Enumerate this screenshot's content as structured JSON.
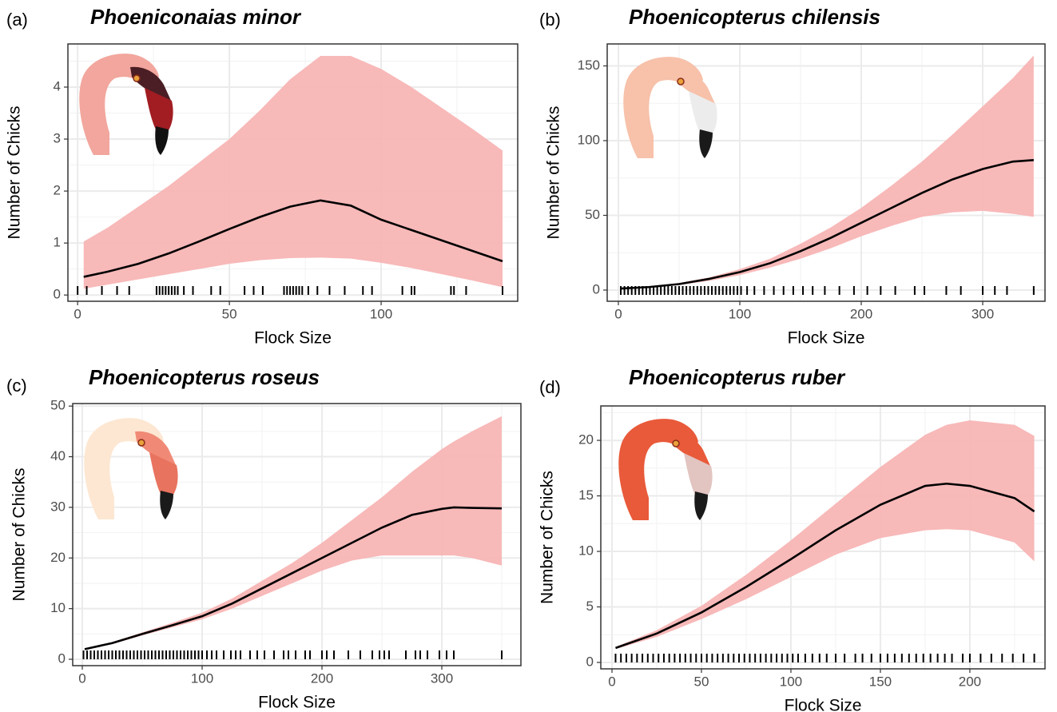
{
  "chart_data": [
    {
      "type": "line",
      "panel_label": "(a)",
      "title": "Phoeniconaias minor",
      "x_label": "Flock Size",
      "y_label": "Number of Chicks",
      "xlim": [
        -3.2,
        145
      ],
      "ylim": [
        -0.12,
        4.83
      ],
      "xticks": [
        0,
        50,
        100
      ],
      "yticks": [
        0,
        1,
        2,
        3,
        4
      ],
      "grid": true,
      "color": "#000000",
      "band_color": "#f8b5b5",
      "x": [
        2,
        10,
        20,
        30,
        40,
        50,
        60,
        70,
        80,
        90,
        100,
        110,
        120,
        130,
        140
      ],
      "values": [
        0.35,
        0.45,
        0.6,
        0.8,
        1.03,
        1.27,
        1.5,
        1.7,
        1.82,
        1.72,
        1.45,
        1.25,
        1.05,
        0.85,
        0.65
      ],
      "upper": [
        1.03,
        1.3,
        1.7,
        2.1,
        2.55,
        3.0,
        3.55,
        4.15,
        4.6,
        4.6,
        4.35,
        4.0,
        3.6,
        3.2,
        2.78
      ],
      "lower": [
        0.12,
        0.2,
        0.3,
        0.4,
        0.5,
        0.6,
        0.67,
        0.71,
        0.72,
        0.7,
        0.62,
        0.52,
        0.4,
        0.28,
        0.15
      ],
      "rug": [
        0,
        3,
        8,
        13,
        17,
        26,
        27,
        28,
        29,
        30,
        31,
        32,
        33,
        35,
        38,
        44,
        47,
        55,
        58,
        61,
        68,
        69,
        70,
        71,
        72,
        73,
        74,
        76,
        79,
        83,
        88,
        94,
        97,
        107,
        110,
        111,
        123,
        124,
        128,
        140
      ]
    },
    {
      "type": "line",
      "panel_label": "(b)",
      "title": "Phoenicopterus chilensis",
      "x_label": "Flock Size",
      "y_label": "Number of Chicks",
      "xlim": [
        -9.2,
        351.3
      ],
      "ylim": [
        -7.5,
        164.7
      ],
      "xticks": [
        0,
        100,
        200,
        300
      ],
      "yticks": [
        0,
        50,
        100,
        150
      ],
      "grid": true,
      "color": "#000000",
      "band_color": "#f8b5b5",
      "x": [
        2,
        25,
        50,
        75,
        100,
        125,
        150,
        175,
        200,
        225,
        250,
        275,
        300,
        325,
        342
      ],
      "values": [
        1,
        2,
        4,
        7.5,
        12,
        18,
        26,
        35,
        45,
        55,
        65,
        74,
        81,
        86,
        87
      ],
      "upper": [
        1.2,
        2.4,
        4.8,
        8.5,
        14,
        21,
        31,
        42,
        55,
        70,
        86,
        104,
        123,
        142,
        157
      ],
      "lower": [
        0.8,
        1.7,
        3.3,
        6.2,
        10,
        15,
        21,
        28,
        36,
        43,
        49,
        52,
        53,
        51,
        49
      ],
      "rug": [
        2,
        5,
        8,
        11,
        14,
        17,
        20,
        23,
        26,
        29,
        32,
        35,
        38,
        41,
        44,
        47,
        50,
        53,
        56,
        59,
        62,
        65,
        68,
        71,
        74,
        77,
        80,
        83,
        86,
        89,
        92,
        95,
        98,
        101,
        106,
        112,
        120,
        128,
        136,
        144,
        152,
        160,
        170,
        182,
        194,
        205,
        216,
        228,
        244,
        252,
        270,
        282,
        300,
        310,
        320,
        342
      ]
    },
    {
      "type": "line",
      "panel_label": "(c)",
      "title": "Phoenicopterus roseus",
      "x_label": "Flock Size",
      "y_label": "Number of Chicks",
      "xlim": [
        -8,
        366
      ],
      "ylim": [
        -1.26,
        50.5
      ],
      "xticks": [
        0,
        100,
        200,
        300
      ],
      "yticks": [
        0,
        10,
        20,
        30,
        40,
        50
      ],
      "grid": true,
      "color": "#000000",
      "band_color": "#f8b5b5",
      "x": [
        2,
        25,
        50,
        75,
        100,
        125,
        150,
        175,
        200,
        225,
        250,
        275,
        300,
        310,
        325,
        350
      ],
      "values": [
        2,
        3.2,
        5,
        6.7,
        8.5,
        11,
        14,
        17,
        20,
        23,
        26,
        28.5,
        29.7,
        30,
        29.9,
        29.8
      ],
      "upper": [
        2.1,
        3.4,
        5.3,
        7.2,
        9.2,
        12,
        15.5,
        19,
        23,
        27.5,
        32,
        37,
        41.5,
        43,
        45,
        48
      ],
      "lower": [
        1.9,
        3,
        4.7,
        6.3,
        7.9,
        10,
        12.5,
        15,
        17.5,
        19.5,
        20.5,
        20.5,
        20.5,
        20.5,
        20,
        18.5
      ],
      "rug": [
        1,
        4,
        7,
        10,
        13,
        16,
        19,
        22,
        25,
        28,
        31,
        34,
        37,
        40,
        43,
        46,
        49,
        52,
        55,
        58,
        61,
        64,
        67,
        70,
        73,
        76,
        79,
        82,
        85,
        88,
        91,
        94,
        97,
        100,
        104,
        108,
        112,
        118,
        124,
        128,
        132,
        140,
        146,
        152,
        160,
        168,
        172,
        178,
        186,
        190,
        200,
        204,
        210,
        222,
        232,
        242,
        248,
        252,
        256,
        270,
        278,
        282,
        288,
        298,
        304,
        310,
        350
      ]
    },
    {
      "type": "line",
      "panel_label": "(d)",
      "title": "Phoenicopterus ruber",
      "x_label": "Flock Size",
      "y_label": "Number of Chicks",
      "xlim": [
        -6.25,
        242
      ],
      "ylim": [
        -0.58,
        23.1
      ],
      "xticks": [
        0,
        50,
        100,
        150,
        200
      ],
      "yticks": [
        0,
        5,
        10,
        15,
        20
      ],
      "grid": true,
      "color": "#000000",
      "band_color": "#f8b5b5",
      "x": [
        2,
        25,
        50,
        75,
        100,
        125,
        150,
        175,
        187,
        200,
        225,
        236
      ],
      "values": [
        1.3,
        2.6,
        4.5,
        6.8,
        9.3,
        11.9,
        14.2,
        15.9,
        16.1,
        15.9,
        14.8,
        13.6
      ],
      "upper": [
        1.4,
        2.9,
        5.1,
        7.9,
        11,
        14.3,
        17.6,
        20.5,
        21.4,
        21.8,
        21.4,
        20.4
      ],
      "lower": [
        1.2,
        2.3,
        3.9,
        5.7,
        7.7,
        9.7,
        11.2,
        11.9,
        12,
        11.9,
        10.8,
        9.1
      ],
      "rug": [
        2,
        5,
        8,
        11,
        14,
        17,
        20,
        23,
        26,
        29,
        32,
        35,
        38,
        41,
        44,
        47,
        50,
        53,
        56,
        59,
        62,
        65,
        68,
        71,
        74,
        77,
        80,
        83,
        86,
        89,
        92,
        95,
        98,
        101,
        104,
        108,
        112,
        116,
        120,
        125,
        130,
        136,
        140,
        145,
        150,
        154,
        158,
        162,
        166,
        170,
        174,
        178,
        182,
        186,
        190,
        196,
        200,
        206,
        212,
        218,
        224,
        230,
        236
      ]
    }
  ]
}
